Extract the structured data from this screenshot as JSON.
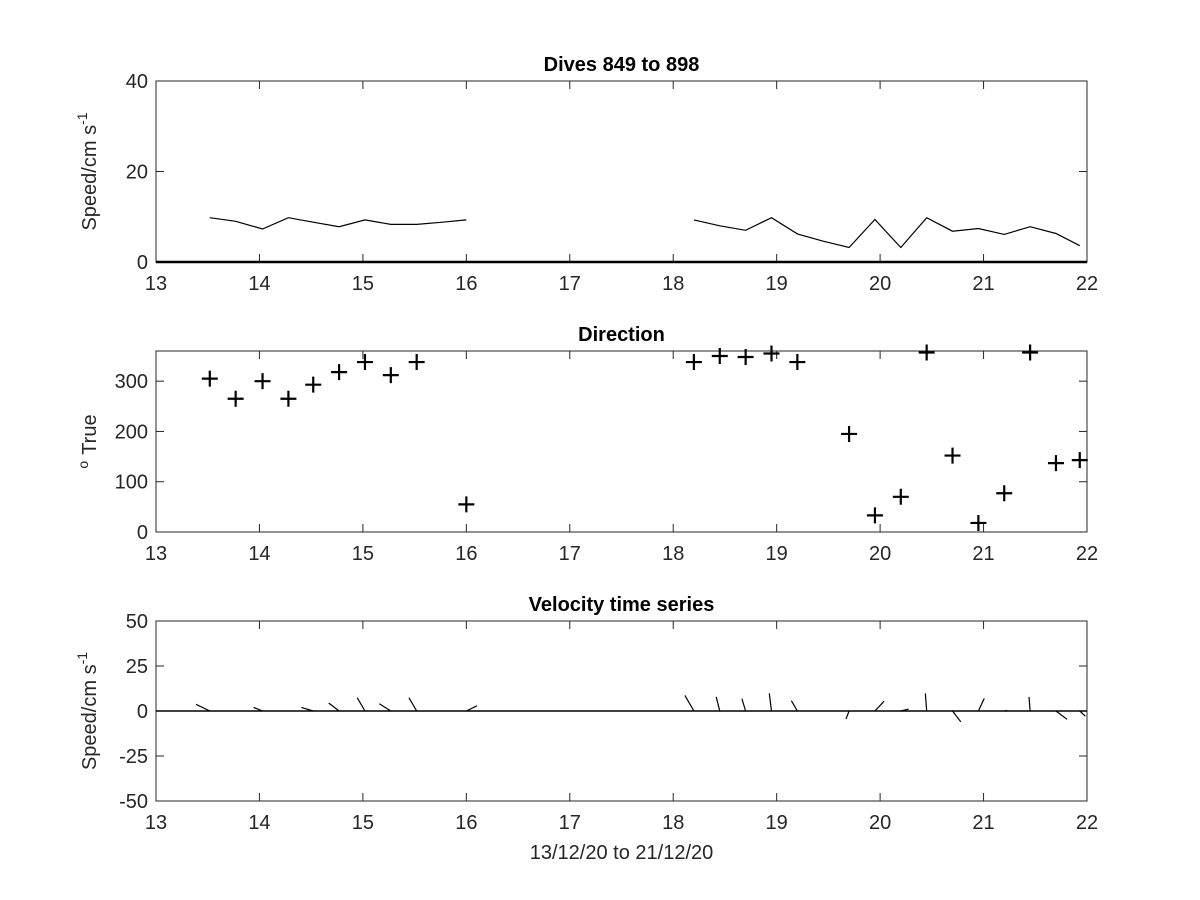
{
  "chart_data": [
    {
      "type": "line",
      "title": "Dives 849 to 898",
      "ylabel_main": "Speed/cm s",
      "ylabel_sup": "-1",
      "xlim": [
        13,
        22
      ],
      "ylim": [
        0,
        40
      ],
      "xticks": [
        13,
        14,
        15,
        16,
        17,
        18,
        19,
        20,
        21,
        22
      ],
      "yticks": [
        0,
        20,
        40
      ],
      "baseline": 0,
      "segments": [
        {
          "x": [
            13.52,
            13.77,
            14.03,
            14.28,
            14.52,
            14.77,
            15.02,
            15.27,
            15.52,
            15.77,
            16.0
          ],
          "y": [
            9.8,
            9.0,
            7.3,
            9.8,
            8.8,
            7.8,
            9.3,
            8.3,
            8.3,
            8.8,
            9.3
          ]
        },
        {
          "x": [
            18.2,
            18.45,
            18.7,
            18.95,
            19.2,
            19.45,
            19.7,
            19.95,
            20.2,
            20.45,
            20.7,
            20.95,
            21.2,
            21.45,
            21.7,
            21.93
          ],
          "y": [
            9.3,
            8.0,
            7.0,
            9.8,
            6.2,
            4.6,
            3.2,
            9.4,
            3.2,
            9.8,
            6.8,
            7.4,
            6.1,
            7.8,
            6.3,
            3.6
          ]
        }
      ]
    },
    {
      "type": "scatter",
      "title": "Direction",
      "ylabel_main": "True",
      "ylabel_sup": "o",
      "xlim": [
        13,
        22
      ],
      "ylim": [
        0,
        360
      ],
      "xticks": [
        13,
        14,
        15,
        16,
        17,
        18,
        19,
        20,
        21,
        22
      ],
      "yticks": [
        0,
        100,
        200,
        300
      ],
      "marker": "+",
      "x": [
        13.52,
        13.77,
        14.03,
        14.28,
        14.52,
        14.77,
        15.02,
        15.27,
        15.52,
        16.0,
        18.2,
        18.45,
        18.7,
        18.95,
        19.2,
        19.7,
        19.95,
        20.2,
        20.45,
        20.7,
        20.95,
        21.2,
        21.45,
        21.7,
        21.93
      ],
      "y": [
        305,
        265,
        300,
        265,
        293,
        318,
        338,
        312,
        338,
        55,
        338,
        350,
        348,
        355,
        338,
        195,
        33,
        70,
        357,
        152,
        18,
        77,
        357,
        137,
        143
      ]
    },
    {
      "type": "quiver",
      "title": "Velocity time series",
      "ylabel_main": "Speed/cm s",
      "ylabel_sup": "-1",
      "xlabel": "13/12/20 to 21/12/20",
      "xlim": [
        13,
        22
      ],
      "ylim": [
        -50,
        50
      ],
      "xticks": [
        13,
        14,
        15,
        16,
        17,
        18,
        19,
        20,
        21,
        22
      ],
      "yticks": [
        -50,
        -25,
        0,
        25,
        50
      ],
      "baseline": 0,
      "x": [
        13.52,
        14.03,
        14.52,
        14.77,
        15.02,
        15.27,
        15.52,
        16.0,
        18.2,
        18.45,
        18.7,
        18.95,
        19.2,
        19.7,
        19.95,
        20.2,
        20.45,
        20.7,
        20.95,
        21.2,
        21.45,
        21.7,
        21.93
      ],
      "speed": [
        6.5,
        4.0,
        5.0,
        6.0,
        8.0,
        6.0,
        8.0,
        5.0,
        9.3,
        8.0,
        7.0,
        9.8,
        6.2,
        4.6,
        6.5,
        3.2,
        9.8,
        6.8,
        7.4,
        1.2,
        7.8,
        6.3,
        3.6
      ],
      "direction": [
        305,
        300,
        293,
        318,
        338,
        312,
        338,
        55,
        338,
        350,
        348,
        355,
        338,
        195,
        33,
        70,
        357,
        152,
        18,
        77,
        357,
        137,
        143
      ]
    }
  ]
}
